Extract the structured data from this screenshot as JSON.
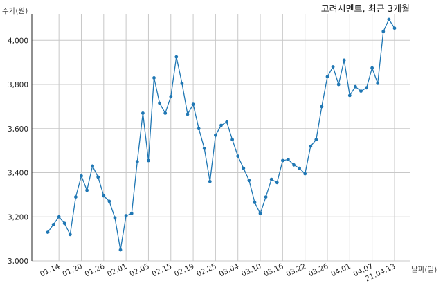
{
  "chart_data": {
    "type": "line",
    "title": "고려시멘트, 최근 3개월",
    "ylabel": "주가(원)",
    "xlabel": "날짜(일)",
    "ylim": [
      3000,
      4120
    ],
    "grid": true,
    "color": "#1f77b4",
    "y_ticks": [
      3000,
      3200,
      3400,
      3600,
      3800,
      4000
    ],
    "y_tick_labels": [
      "3,000",
      "3,200",
      "3,400",
      "3,600",
      "3,800",
      "4,000"
    ],
    "x_ticks": [
      {
        "index": 2,
        "label": "01.14"
      },
      {
        "index": 6,
        "label": "01.20"
      },
      {
        "index": 10,
        "label": "01.26"
      },
      {
        "index": 14,
        "label": "02.01"
      },
      {
        "index": 18,
        "label": "02.05"
      },
      {
        "index": 22,
        "label": "02.15"
      },
      {
        "index": 26,
        "label": "02.19"
      },
      {
        "index": 30,
        "label": "02.25"
      },
      {
        "index": 34,
        "label": "03.04"
      },
      {
        "index": 38,
        "label": "03.10"
      },
      {
        "index": 42,
        "label": "03.16"
      },
      {
        "index": 46,
        "label": "03.22"
      },
      {
        "index": 50,
        "label": "03.26"
      },
      {
        "index": 54,
        "label": "04.01"
      },
      {
        "index": 58,
        "label": "04.07"
      },
      {
        "index": 62,
        "label": "21.04.13"
      }
    ],
    "series": [
      {
        "values": [
          3130,
          3165,
          3200,
          3170,
          3120,
          3290,
          3385,
          3320,
          3430,
          3380,
          3295,
          3270,
          3195,
          3050,
          3205,
          3215,
          3450,
          3670,
          3455,
          3830,
          3715,
          3670,
          3745,
          3925,
          3805,
          3665,
          3710,
          3600,
          3510,
          3360,
          3570,
          3615,
          3630,
          3550,
          3475,
          3420,
          3365,
          3265,
          3215,
          3290,
          3370,
          3355,
          3455,
          3460,
          3435,
          3420,
          3395,
          3520,
          3550,
          3700,
          3835,
          3880,
          3800,
          3910,
          3750,
          3790,
          3770,
          3785,
          3875,
          3805,
          4040,
          4095,
          4055
        ]
      }
    ]
  }
}
